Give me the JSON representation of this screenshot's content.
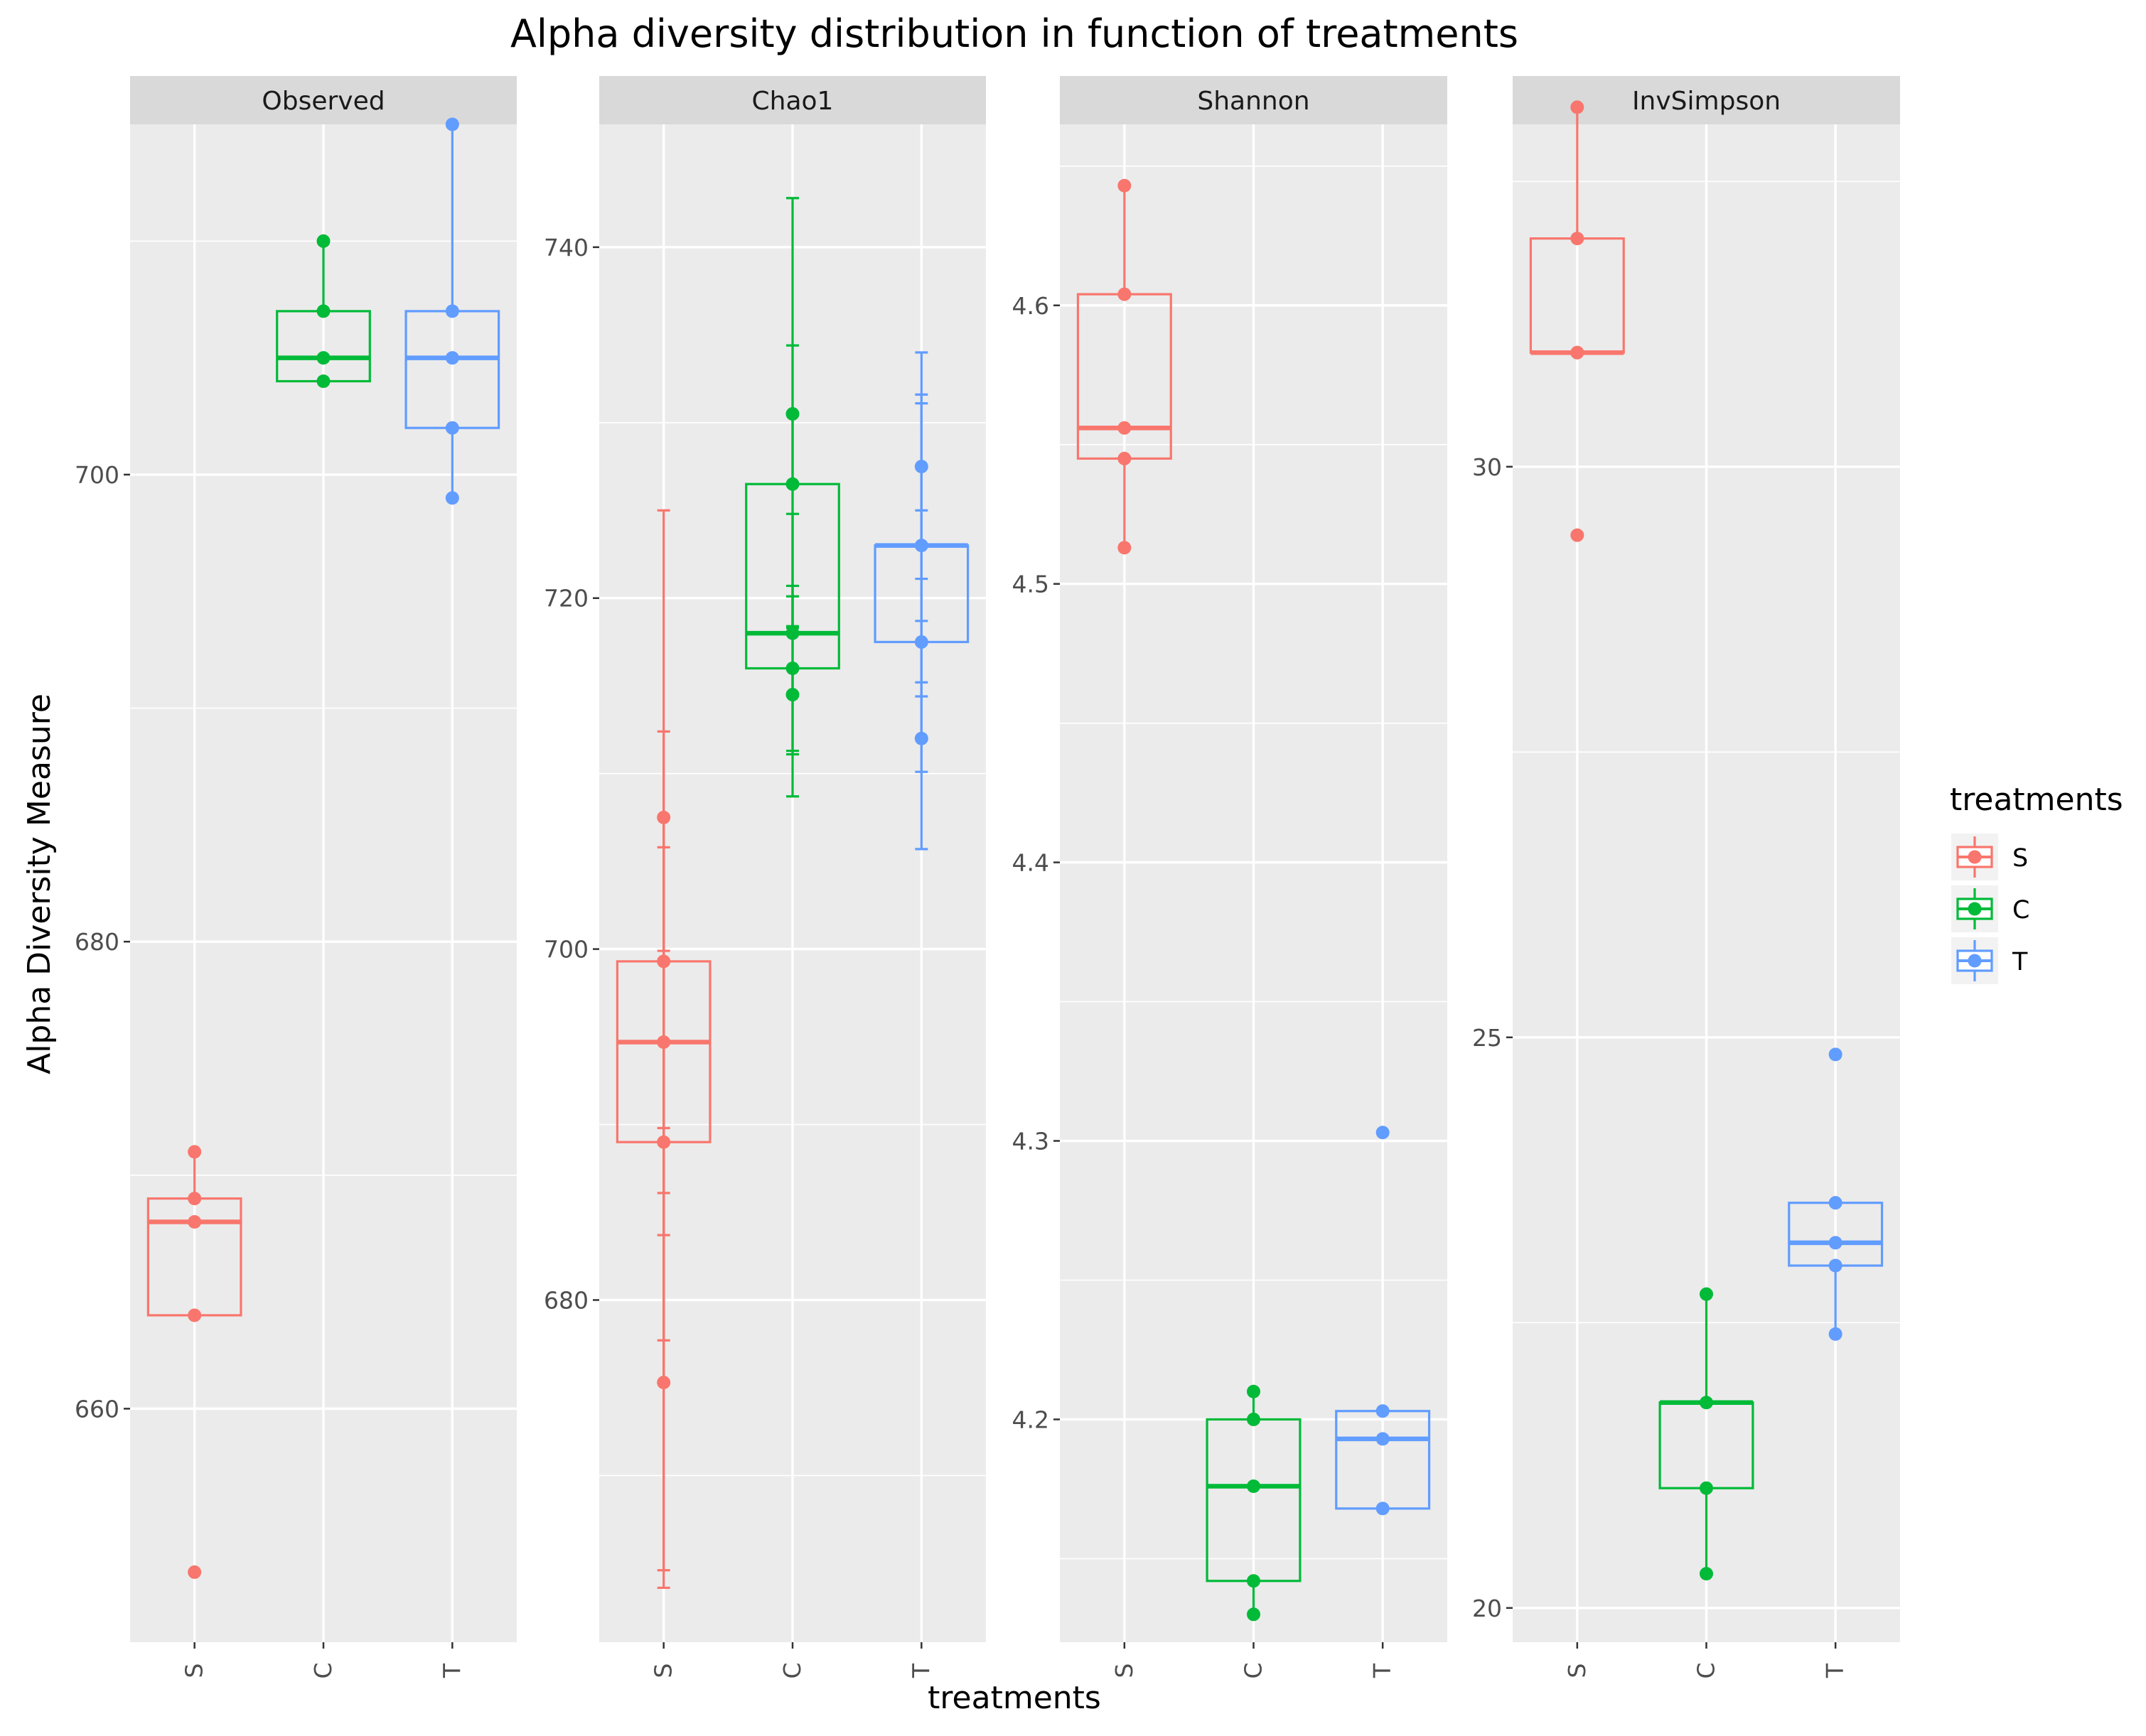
{
  "chart_data": {
    "type": "box",
    "title": "Alpha diversity distribution in function of treatments",
    "xlabel": "treatments",
    "ylabel": "Alpha Diversity Measure",
    "categories": [
      "S",
      "C",
      "T"
    ],
    "legend": {
      "title": "treatments",
      "position": "right",
      "entries": [
        {
          "label": "S",
          "color": "#F8766D"
        },
        {
          "label": "C",
          "color": "#00BA38"
        },
        {
          "label": "T",
          "color": "#619CFF"
        }
      ]
    },
    "panels": [
      {
        "name": "Observed",
        "ylim": [
          650,
          715
        ],
        "major_ticks": [
          660,
          680,
          700
        ],
        "minor_ticks": [
          670,
          690,
          710
        ],
        "groups": [
          {
            "cat": "S",
            "color": "#F8766D",
            "q1": 664,
            "median": 668,
            "q3": 669,
            "whisker_low": 664,
            "whisker_high": 671,
            "points": [
              653,
              664,
              668,
              669,
              671
            ]
          },
          {
            "cat": "C",
            "color": "#00BA38",
            "q1": 704,
            "median": 705,
            "q3": 707,
            "whisker_low": 704,
            "whisker_high": 710,
            "points": [
              704,
              705,
              707,
              710
            ]
          },
          {
            "cat": "T",
            "color": "#619CFF",
            "q1": 702,
            "median": 705,
            "q3": 707,
            "whisker_low": 699,
            "whisker_high": 715,
            "points": [
              699,
              702,
              705,
              707,
              715
            ]
          }
        ]
      },
      {
        "name": "Chao1",
        "ylim": [
          660.5,
          747
        ],
        "major_ticks": [
          680,
          700,
          720,
          740
        ],
        "minor_ticks": [
          670,
          690,
          710,
          730
        ],
        "groups": [
          {
            "cat": "S",
            "color": "#F8766D",
            "q1": 689,
            "median": 694.7,
            "q3": 699.3,
            "whisker_low": 675.3,
            "whisker_high": 707.5,
            "points": [
              675.3,
              689,
              694.7,
              699.3,
              707.5
            ],
            "errorbars": [
              [
                664.6,
                686.1
              ],
              [
                677.7,
                712.4
              ],
              [
                683.7,
                705.8
              ],
              [
                689.8,
                699.9
              ],
              [
                663.6,
                725
              ]
            ]
          },
          {
            "cat": "C",
            "color": "#00BA38",
            "q1": 716,
            "median": 718,
            "q3": 726.5,
            "whisker_low": 714.5,
            "whisker_high": 730.5,
            "points": [
              714.5,
              716,
              718,
              726.5,
              730.5
            ],
            "errorbars": [
              [
                708.7,
                720.1
              ],
              [
                711.3,
                720.7
              ],
              [
                711.1,
                724.8
              ],
              [
                718.4,
                734.4
              ],
              [
                718.3,
                742.8
              ]
            ]
          },
          {
            "cat": "T",
            "color": "#619CFF",
            "q1": 717.5,
            "median": 723,
            "q3": 723,
            "whisker_low": 712,
            "whisker_high": 727.5,
            "points": [
              712,
              717.5,
              723,
              727.5
            ],
            "errorbars": [
              [
                705.7,
                718.7
              ],
              [
                710.1,
                725
              ],
              [
                714.4,
                731.6
              ],
              [
                715.2,
                731.1
              ],
              [
                721.1,
                734
              ]
            ]
          }
        ]
      },
      {
        "name": "Shannon",
        "ylim": [
          4.12,
          4.665
        ],
        "major_ticks": [
          4.2,
          4.3,
          4.4,
          4.5,
          4.6
        ],
        "minor_ticks": [
          4.15,
          4.25,
          4.35,
          4.45,
          4.55,
          4.65
        ],
        "groups": [
          {
            "cat": "S",
            "color": "#F8766D",
            "q1": 4.545,
            "median": 4.556,
            "q3": 4.604,
            "whisker_low": 4.513,
            "whisker_high": 4.643,
            "points": [
              4.513,
              4.545,
              4.556,
              4.604,
              4.643
            ]
          },
          {
            "cat": "C",
            "color": "#00BA38",
            "q1": 4.142,
            "median": 4.176,
            "q3": 4.2,
            "whisker_low": 4.13,
            "whisker_high": 4.21,
            "points": [
              4.13,
              4.142,
              4.176,
              4.2,
              4.21
            ]
          },
          {
            "cat": "T",
            "color": "#619CFF",
            "q1": 4.168,
            "median": 4.193,
            "q3": 4.203,
            "whisker_low": 4.168,
            "whisker_high": 4.203,
            "points": [
              4.168,
              4.193,
              4.203,
              4.303
            ]
          }
        ]
      },
      {
        "name": "InvSimpson",
        "ylim": [
          19.7,
          33.0
        ],
        "major_ticks": [
          20,
          25,
          30
        ],
        "minor_ticks": [
          22.5,
          27.5,
          32.5
        ],
        "groups": [
          {
            "cat": "S",
            "color": "#F8766D",
            "q1": 31.0,
            "median": 31.0,
            "q3": 32.0,
            "whisker_low": 31.0,
            "whisker_high": 33.15,
            "points": [
              29.4,
              31.0,
              31.0,
              32.0,
              33.15
            ]
          },
          {
            "cat": "C",
            "color": "#00BA38",
            "q1": 21.05,
            "median": 21.8,
            "q3": 21.8,
            "whisker_low": 20.3,
            "whisker_high": 22.75,
            "points": [
              20.3,
              21.05,
              21.8,
              22.75
            ]
          },
          {
            "cat": "T",
            "color": "#619CFF",
            "q1": 23.0,
            "median": 23.2,
            "q3": 23.55,
            "whisker_low": 22.4,
            "whisker_high": 23.55,
            "points": [
              22.4,
              23.0,
              23.2,
              23.55,
              24.85
            ]
          }
        ]
      }
    ]
  }
}
